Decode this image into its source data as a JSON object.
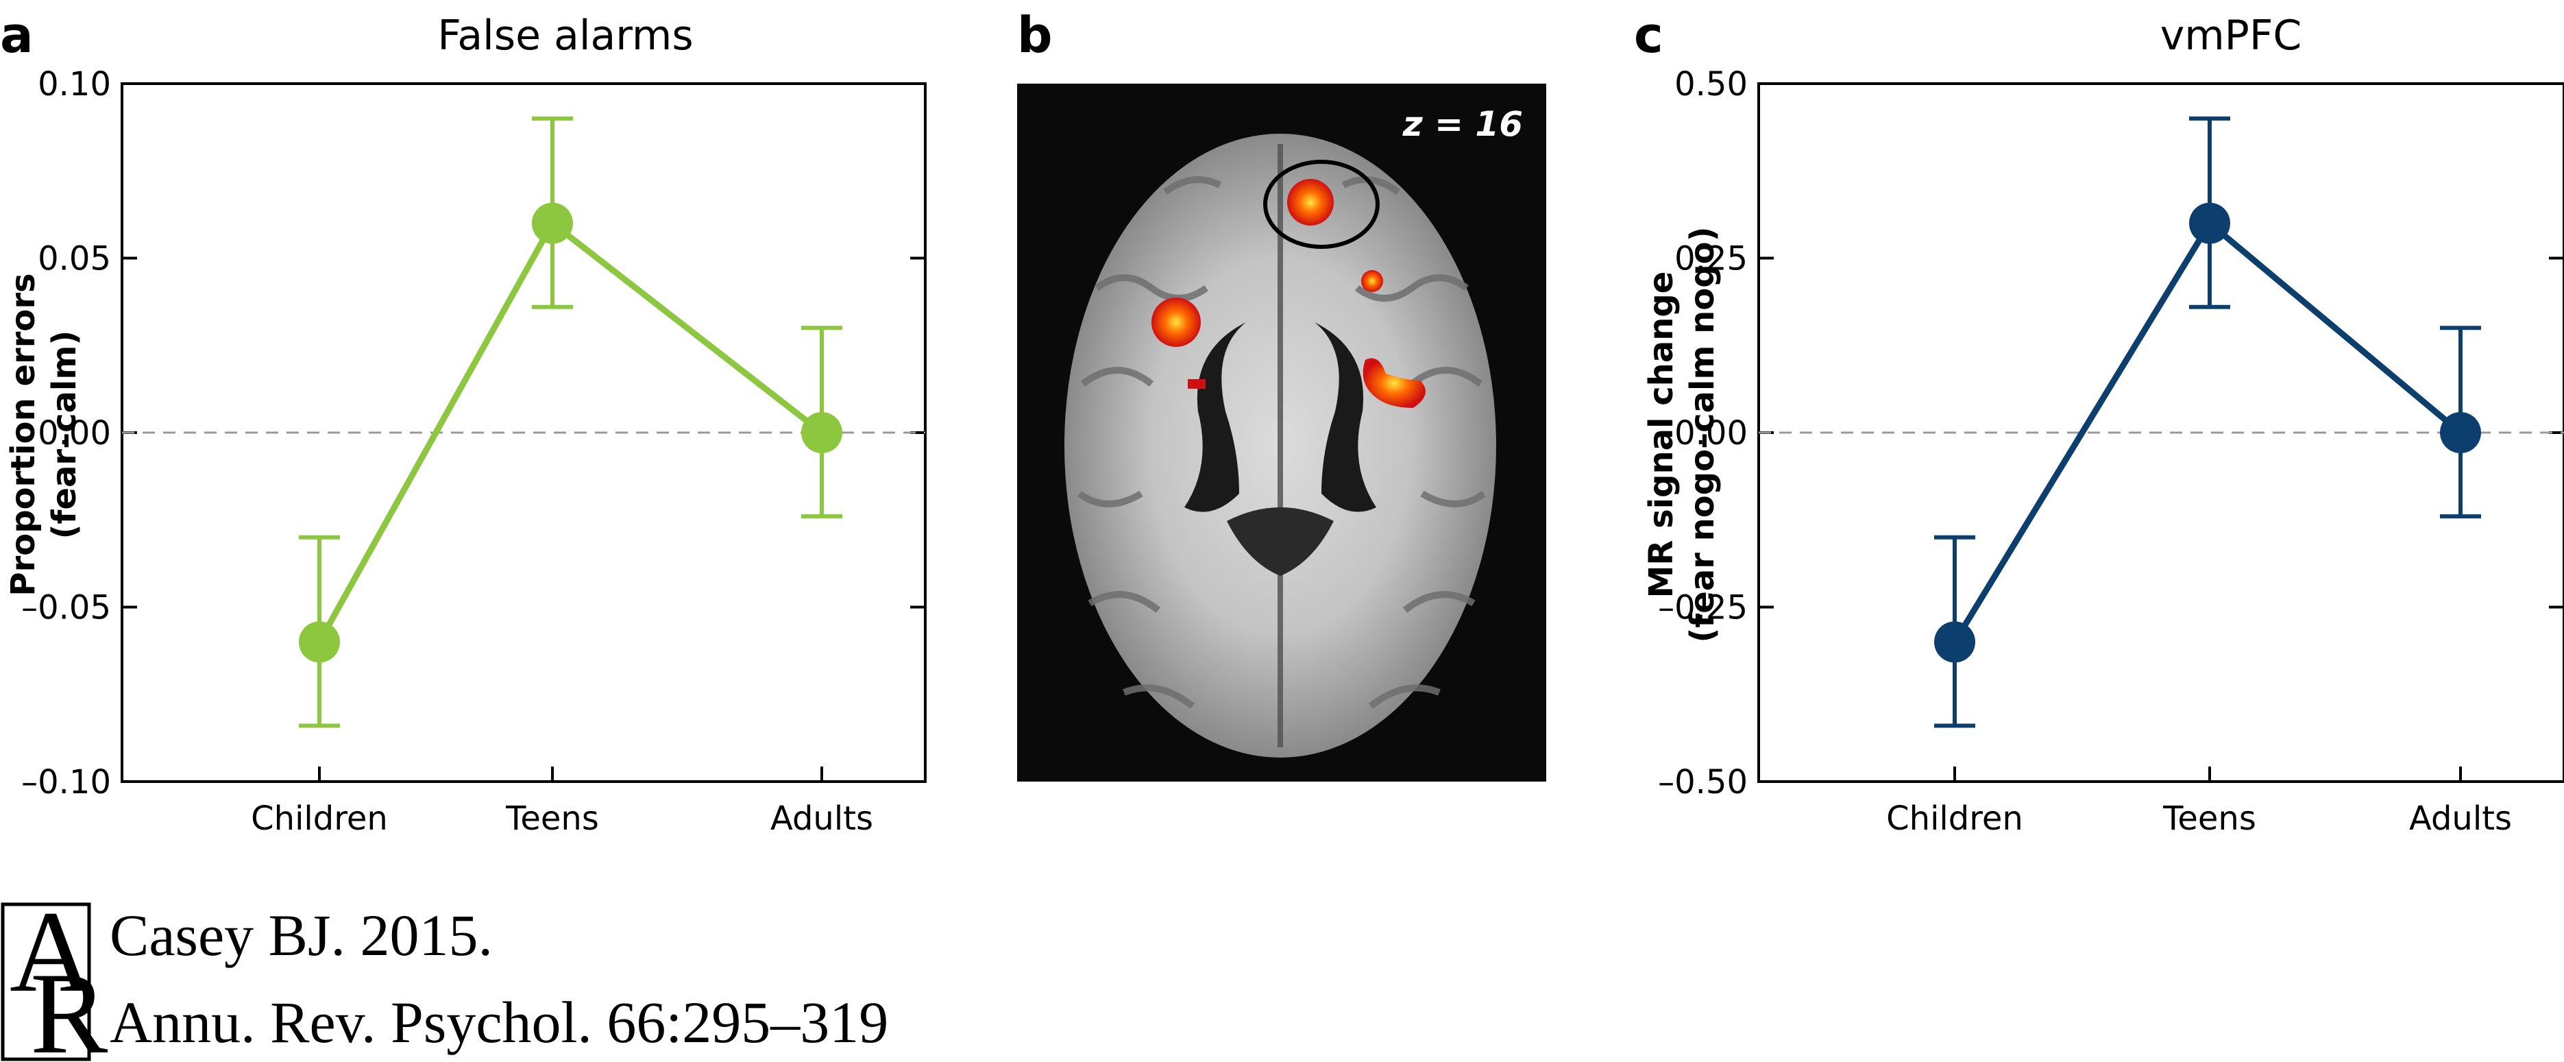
{
  "panels": {
    "a": {
      "letter": "a",
      "title": "False alarms"
    },
    "b": {
      "letter": "b",
      "z_label": "z = 16"
    },
    "c": {
      "letter": "c",
      "title": "vmPFC"
    }
  },
  "citation": {
    "line1": "Casey BJ. 2015.",
    "line2": "Annu. Rev. Psychol. 66:295–319"
  },
  "logo": {
    "letters": "AR",
    "color": "#000000"
  },
  "chart_data": [
    {
      "type": "line",
      "title": "False alarms",
      "xlabel": "",
      "ylabel": [
        "Proportion errors",
        "(fear–calm)"
      ],
      "categories": [
        "Children",
        "Teens",
        "Adults"
      ],
      "values": [
        -0.06,
        0.06,
        0.0
      ],
      "error_low": [
        -0.084,
        0.036,
        -0.024
      ],
      "error_high": [
        -0.03,
        0.09,
        0.03
      ],
      "ylim": [
        -0.1,
        0.1
      ],
      "yticks": [
        0.1,
        0.05,
        0.0,
        -0.05,
        -0.1
      ],
      "ytick_labels": [
        "0.10",
        "0.05",
        "0.00",
        "–0.05",
        "–0.10"
      ],
      "reference_line": 0.0,
      "color": "#8dc63f"
    },
    {
      "type": "line",
      "title": "vmPFC",
      "xlabel": "",
      "ylabel": [
        "MR signal change",
        "(fear nogo–calm nogo)"
      ],
      "categories": [
        "Children",
        "Teens",
        "Adults"
      ],
      "values": [
        -0.3,
        0.3,
        0.0
      ],
      "error_low": [
        -0.42,
        0.18,
        -0.12
      ],
      "error_high": [
        -0.15,
        0.45,
        0.15
      ],
      "ylim": [
        -0.5,
        0.5
      ],
      "yticks": [
        0.5,
        0.25,
        0.0,
        -0.25,
        -0.5
      ],
      "ytick_labels": [
        "0.50",
        "0.25",
        "0.00",
        "–0.25",
        "–0.50"
      ],
      "reference_line": 0.0,
      "color": "#0d3f6e"
    }
  ]
}
